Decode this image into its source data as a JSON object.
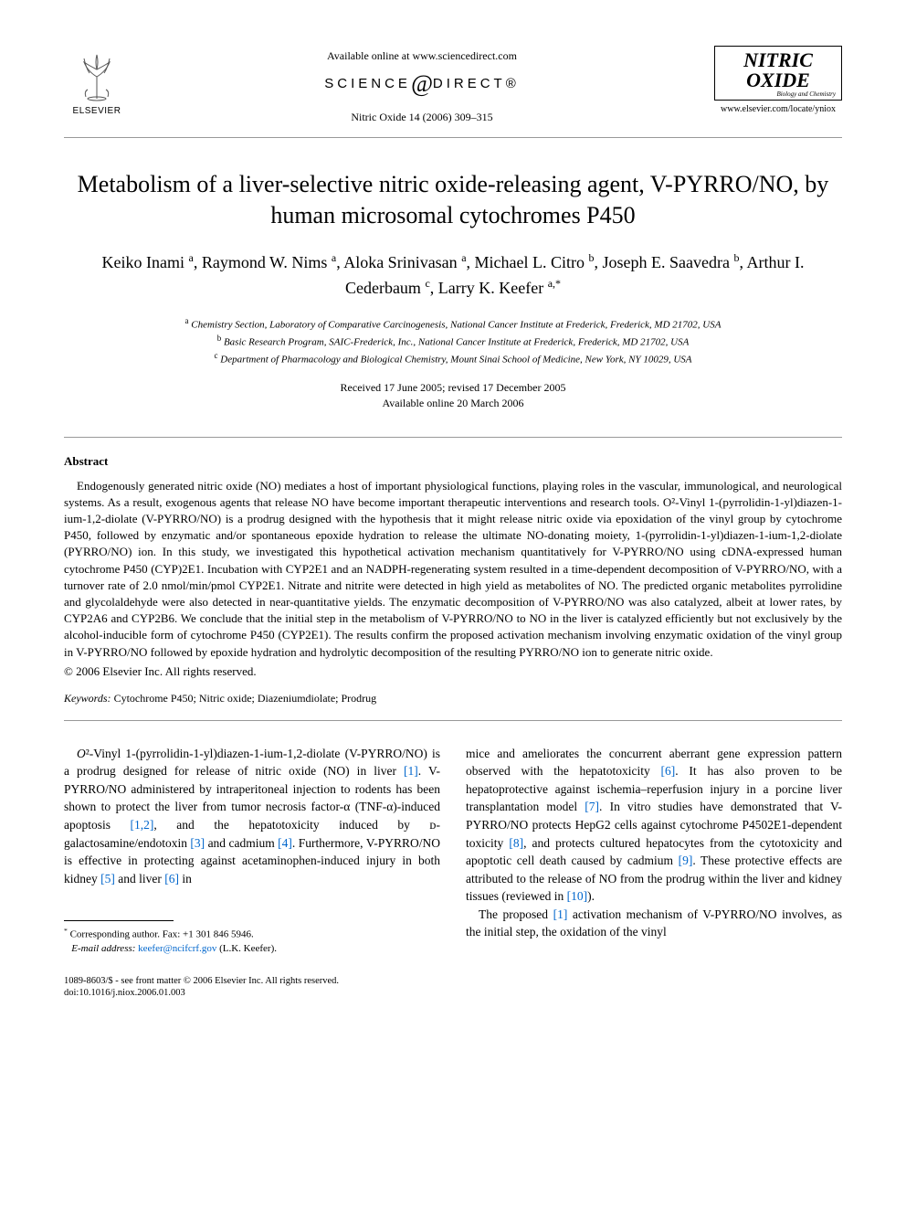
{
  "header": {
    "publisher_label": "ELSEVIER",
    "available_online": "Available online at www.sciencedirect.com",
    "sciencedirect_left": "SCIENCE",
    "sciencedirect_right": "DIRECT®",
    "citation": "Nitric Oxide 14 (2006) 309–315",
    "journal_name_line1": "NITRIC",
    "journal_name_line2": "OXIDE",
    "journal_subtitle": "Biology and Chemistry",
    "journal_url": "www.elsevier.com/locate/yniox"
  },
  "title": "Metabolism of a liver-selective nitric oxide-releasing agent, V-PYRRO/NO, by human microsomal cytochromes P450",
  "authors_html": "Keiko Inami <sup>a</sup>, Raymond W. Nims <sup>a</sup>, Aloka Srinivasan <sup>a</sup>, Michael L. Citro <sup>b</sup>, Joseph E. Saavedra <sup>b</sup>, Arthur I. Cederbaum <sup>c</sup>, Larry K. Keefer <sup>a,*</sup>",
  "affiliations": {
    "a": "Chemistry Section, Laboratory of Comparative Carcinogenesis, National Cancer Institute at Frederick, Frederick, MD 21702, USA",
    "b": "Basic Research Program, SAIC-Frederick, Inc., National Cancer Institute at Frederick, Frederick, MD 21702, USA",
    "c": "Department of Pharmacology and Biological Chemistry, Mount Sinai School of Medicine, New York, NY 10029, USA"
  },
  "dates": {
    "received": "Received 17 June 2005; revised 17 December 2005",
    "online": "Available online 20 March 2006"
  },
  "abstract": {
    "heading": "Abstract",
    "body": "Endogenously generated nitric oxide (NO) mediates a host of important physiological functions, playing roles in the vascular, immunological, and neurological systems. As a result, exogenous agents that release NO have become important therapeutic interventions and research tools. O²-Vinyl 1-(pyrrolidin-1-yl)diazen-1-ium-1,2-diolate (V-PYRRO/NO) is a prodrug designed with the hypothesis that it might release nitric oxide via epoxidation of the vinyl group by cytochrome P450, followed by enzymatic and/or spontaneous epoxide hydration to release the ultimate NO-donating moiety, 1-(pyrrolidin-1-yl)diazen-1-ium-1,2-diolate (PYRRO/NO) ion. In this study, we investigated this hypothetical activation mechanism quantitatively for V-PYRRO/NO using cDNA-expressed human cytochrome P450 (CYP)2E1. Incubation with CYP2E1 and an NADPH-regenerating system resulted in a time-dependent decomposition of V-PYRRO/NO, with a turnover rate of 2.0 nmol/min/pmol CYP2E1. Nitrate and nitrite were detected in high yield as metabolites of NO. The predicted organic metabolites pyrrolidine and glycolaldehyde were also detected in near-quantitative yields. The enzymatic decomposition of V-PYRRO/NO was also catalyzed, albeit at lower rates, by CYP2A6 and CYP2B6. We conclude that the initial step in the metabolism of V-PYRRO/NO to NO in the liver is catalyzed efficiently but not exclusively by the alcohol-inducible form of cytochrome P450 (CYP2E1). The results confirm the proposed activation mechanism involving enzymatic oxidation of the vinyl group in V-PYRRO/NO followed by epoxide hydration and hydrolytic decomposition of the resulting PYRRO/NO ion to generate nitric oxide.",
    "copyright": "© 2006 Elsevier Inc. All rights reserved."
  },
  "keywords": {
    "label": "Keywords:",
    "text": "Cytochrome P450; Nitric oxide; Diazeniumdiolate; Prodrug"
  },
  "body": {
    "col1_html": "<i>O</i>²-Vinyl 1-(pyrrolidin-1-yl)diazen-1-ium-1,2-diolate (V-PYRRO/NO) is a prodrug designed for release of nitric oxide (NO) in liver <span class=\"ref-link\">[1]</span>. V-PYRRO/NO administered by intraperitoneal injection to rodents has been shown to protect the liver from tumor necrosis factor-α (TNF-α)-induced apoptosis <span class=\"ref-link\">[1,2]</span>, and the hepatotoxicity induced by ᴅ-galactosamine/endotoxin <span class=\"ref-link\">[3]</span> and cadmium <span class=\"ref-link\">[4]</span>. Furthermore, V-PYRRO/NO is effective in protecting against acetaminophen-induced injury in both kidney <span class=\"ref-link\">[5]</span> and liver <span class=\"ref-link\">[6]</span> in",
    "col2_html": "mice and ameliorates the concurrent aberrant gene expression pattern observed with the hepatotoxicity <span class=\"ref-link\">[6]</span>. It has also proven to be hepatoprotective against ischemia–reperfusion injury in a porcine liver transplantation model <span class=\"ref-link\">[7]</span>. In vitro studies have demonstrated that V-PYRRO/NO protects HepG2 cells against cytochrome P4502E1-dependent toxicity <span class=\"ref-link\">[8]</span>, and protects cultured hepatocytes from the cytotoxicity and apoptotic cell death caused by cadmium <span class=\"ref-link\">[9]</span>. These protective effects are attributed to the release of NO from the prodrug within the liver and kidney tissues (reviewed in <span class=\"ref-link\">[10]</span>).",
    "col2_p2_html": "The proposed <span class=\"ref-link\">[1]</span> activation mechanism of V-PYRRO/NO involves, as the initial step, the oxidation of the vinyl"
  },
  "footnotes": {
    "corresponding": "Corresponding author. Fax: +1 301 846 5946.",
    "email_label": "E-mail address:",
    "email": "keefer@ncifcrf.gov",
    "email_name": "(L.K. Keefer)."
  },
  "footer": {
    "line1": "1089-8603/$ - see front matter © 2006 Elsevier Inc. All rights reserved.",
    "line2": "doi:10.1016/j.niox.2006.01.003"
  },
  "colors": {
    "link": "#0066cc",
    "text": "#000000",
    "rule": "#999999"
  }
}
